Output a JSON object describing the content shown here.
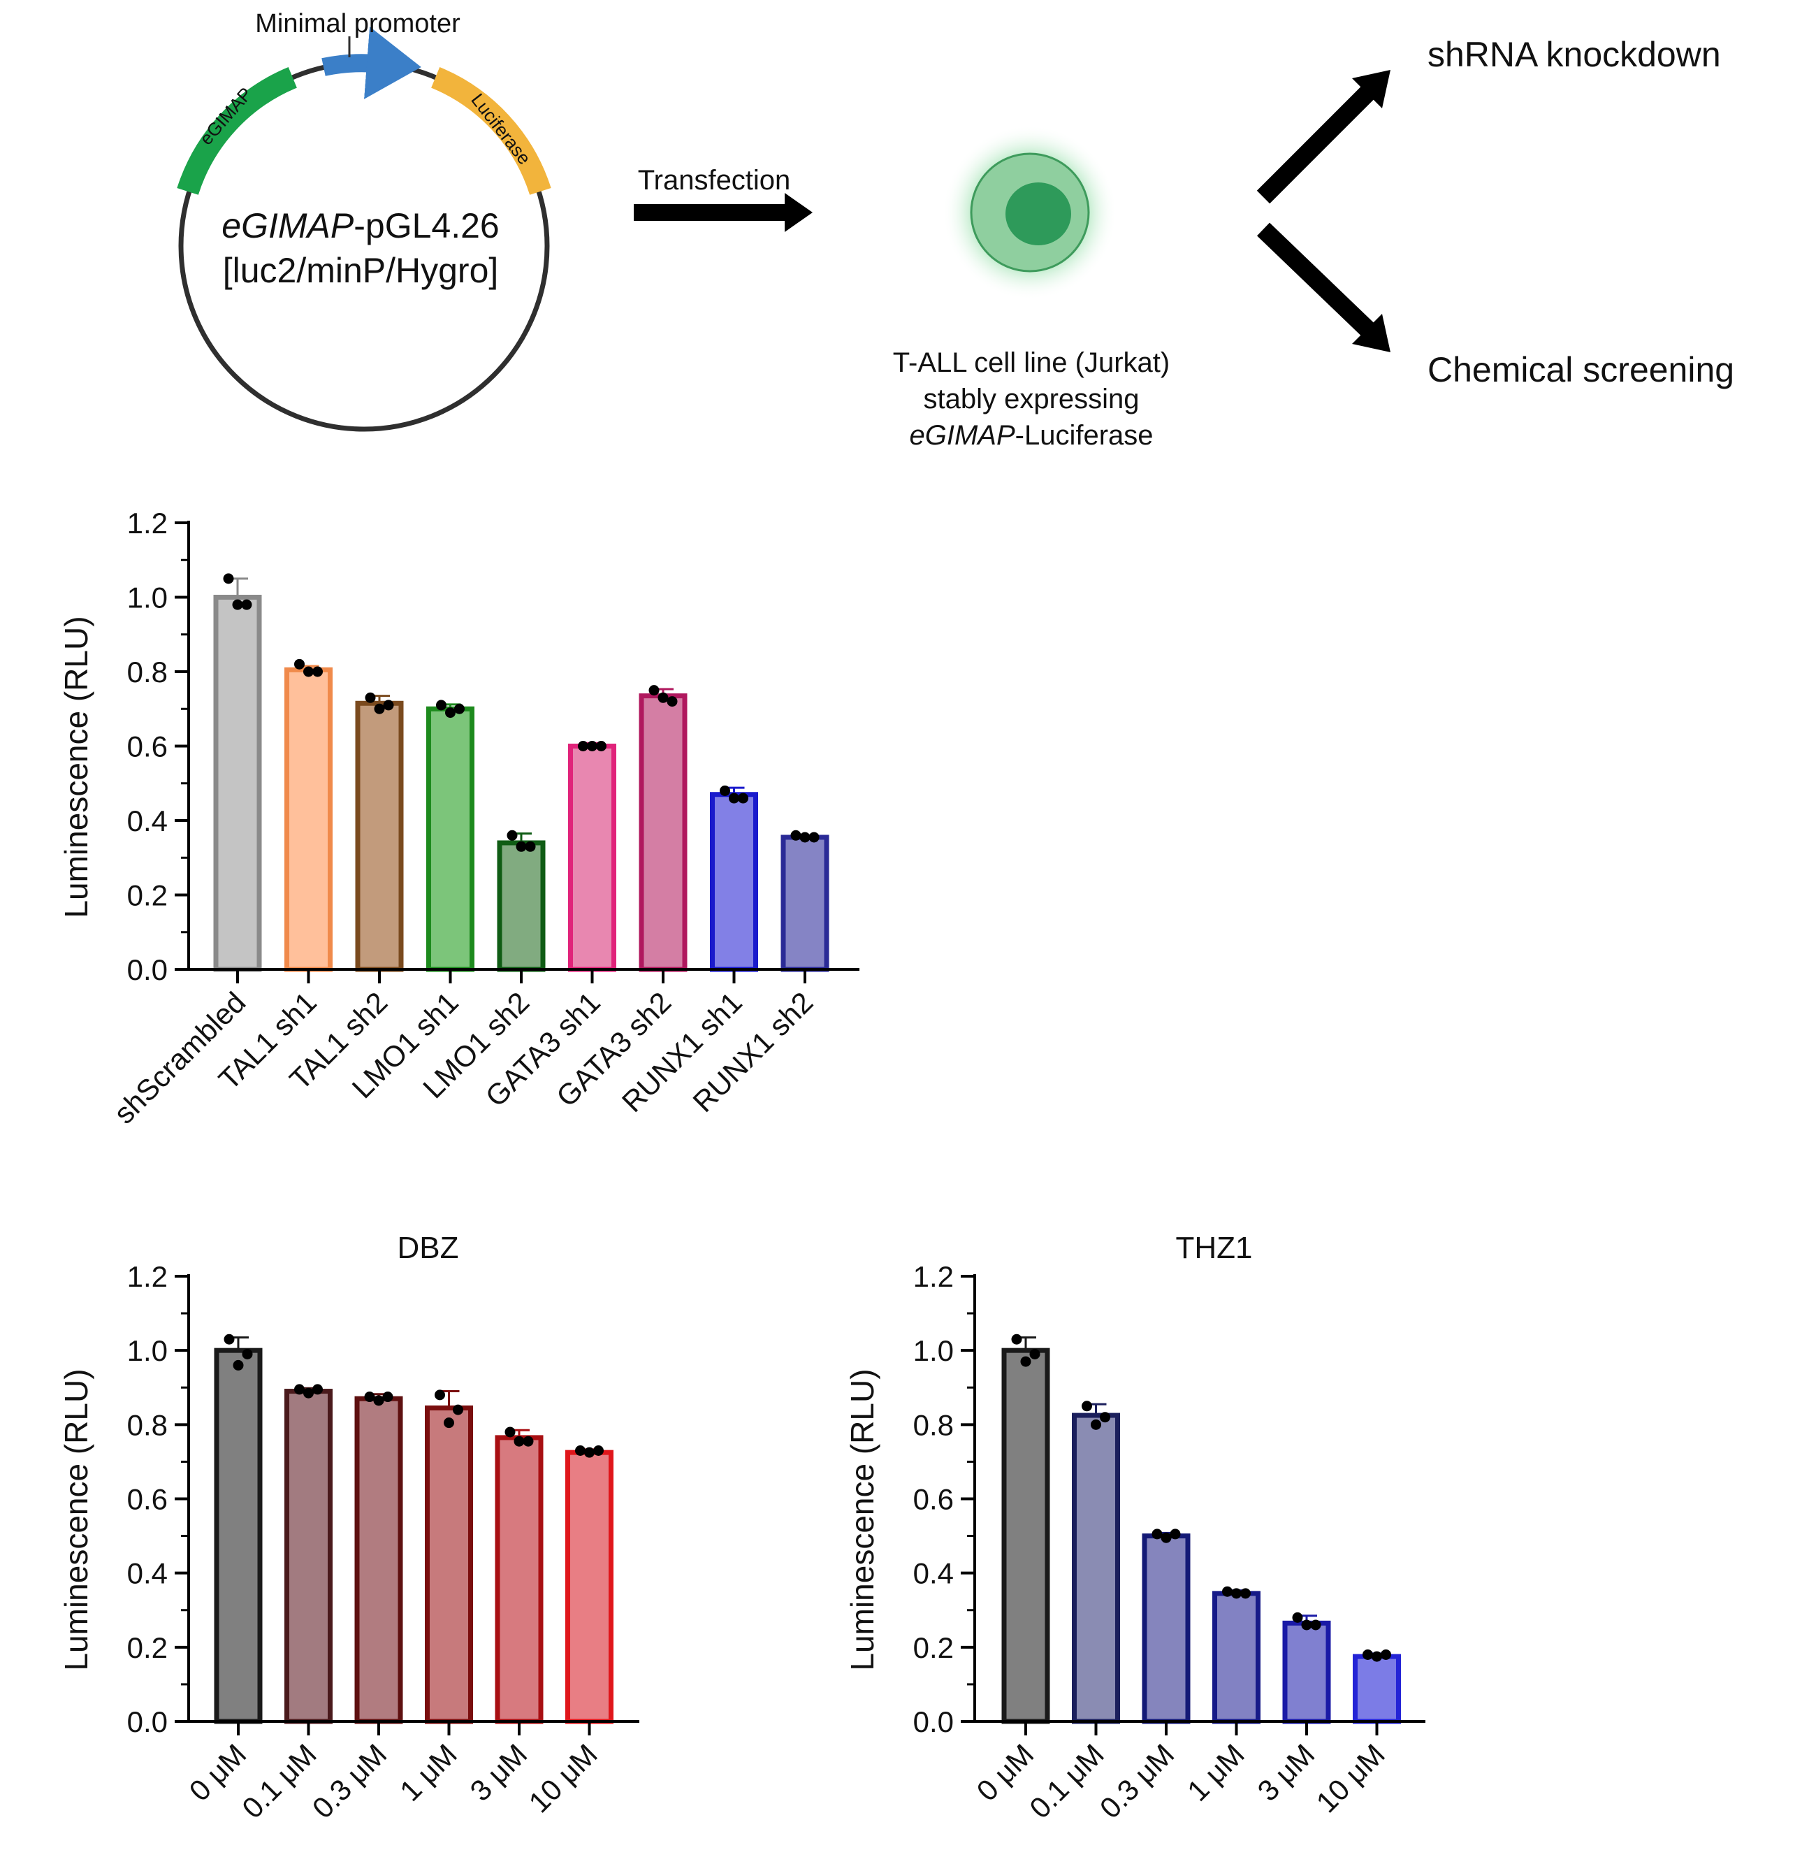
{
  "schematic": {
    "plasmid_name_italic": "eGIMAP",
    "plasmid_name_rest": "-pGL4.26",
    "plasmid_backbone": "[luc2/minP/Hygro]",
    "promoter_label": "Minimal promoter",
    "egimap_segment_label": "eGIMAP",
    "luciferase_segment_label": "Luciferase",
    "transfection_label": "Transfection",
    "cell_caption_line1": "T-ALL cell line (Jurkat)",
    "cell_caption_line2": "stably expressing",
    "cell_caption_line3_italic": "eGIMAP",
    "cell_caption_line3_rest": "-Luciferase",
    "branch_top_label": "shRNA knockdown",
    "branch_bottom_label": "Chemical screening",
    "colors": {
      "egimap": "#1aa34a",
      "promoter": "#3b7fc8",
      "luciferase": "#f2b43c",
      "cell_outer": "#8fcf9f",
      "cell_nucleus": "#2e9a5a"
    }
  },
  "chart_data": [
    {
      "type": "bar",
      "title": "",
      "xlabel": "",
      "ylabel": "Luminescence (RLU)",
      "ylim": [
        0,
        1.2
      ],
      "yticks": [
        "0.0",
        "0.2",
        "0.4",
        "0.6",
        "0.8",
        "1.0",
        "1.2"
      ],
      "grid": false,
      "categories": [
        "shScrambled",
        "TAL1 sh1",
        "TAL1 sh2",
        "LMO1 sh1",
        "LMO1 sh2",
        "GATA3 sh1",
        "GATA3 sh2",
        "RUNX1 sh1",
        "RUNX1 sh2"
      ],
      "values": [
        1.0,
        0.805,
        0.715,
        0.7,
        0.34,
        0.6,
        0.735,
        0.47,
        0.355
      ],
      "errors": [
        0.05,
        0.01,
        0.02,
        0.012,
        0.025,
        0.008,
        0.018,
        0.018,
        0.005
      ],
      "points": [
        [
          1.05,
          0.98,
          0.98
        ],
        [
          0.82,
          0.8,
          0.8
        ],
        [
          0.73,
          0.71,
          0.7
        ],
        [
          0.71,
          0.7,
          0.69
        ],
        [
          0.36,
          0.33,
          0.33
        ],
        [
          0.6,
          0.6,
          0.6
        ],
        [
          0.75,
          0.72,
          0.73
        ],
        [
          0.48,
          0.46,
          0.46
        ],
        [
          0.36,
          0.355,
          0.355
        ]
      ],
      "fill_colors": [
        "#c4c4c4",
        "#ffc09b",
        "#c29b7c",
        "#7cc57a",
        "#81ab80",
        "#e887b0",
        "#d47ea4",
        "#8280e6",
        "#8584c5"
      ],
      "edge_colors": [
        "#8a8a8a",
        "#f08a4b",
        "#7a4a1e",
        "#1d8a1d",
        "#0f5c14",
        "#e0237a",
        "#b0185e",
        "#1a1acc",
        "#2a2a96"
      ]
    },
    {
      "type": "bar",
      "title": "DBZ",
      "xlabel": "",
      "ylabel": "Luminescence (RLU)",
      "ylim": [
        0,
        1.2
      ],
      "yticks": [
        "0.0",
        "0.2",
        "0.4",
        "0.6",
        "0.8",
        "1.0",
        "1.2"
      ],
      "grid": false,
      "categories": [
        "0 μM",
        "0.1 μM",
        "0.3 μM",
        "1 μM",
        "3 μM",
        "10 μM"
      ],
      "values": [
        1.0,
        0.89,
        0.87,
        0.845,
        0.765,
        0.725
      ],
      "errors": [
        0.035,
        0.008,
        0.012,
        0.045,
        0.02,
        0.008
      ],
      "points": [
        [
          1.03,
          0.99,
          0.96
        ],
        [
          0.895,
          0.895,
          0.885
        ],
        [
          0.875,
          0.875,
          0.865
        ],
        [
          0.88,
          0.84,
          0.805
        ],
        [
          0.78,
          0.755,
          0.755
        ],
        [
          0.73,
          0.73,
          0.725
        ]
      ],
      "fill_colors": [
        "#808080",
        "#a27b80",
        "#b17c80",
        "#c77a7c",
        "#d77a7f",
        "#e87e84"
      ],
      "edge_colors": [
        "#1a1a1a",
        "#4a1a1c",
        "#5e1010",
        "#7a0e0e",
        "#a80f12",
        "#e0161b"
      ]
    },
    {
      "type": "bar",
      "title": "THZ1",
      "xlabel": "",
      "ylabel": "Luminescence (RLU)",
      "ylim": [
        0,
        1.2
      ],
      "yticks": [
        "0.0",
        "0.2",
        "0.4",
        "0.6",
        "0.8",
        "1.0",
        "1.2"
      ],
      "grid": false,
      "categories": [
        "0 μM",
        "0.1 μM",
        "0.3 μM",
        "1 μM",
        "3 μM",
        "10 μM"
      ],
      "values": [
        1.0,
        0.825,
        0.5,
        0.345,
        0.265,
        0.175
      ],
      "errors": [
        0.035,
        0.03,
        0.008,
        0.008,
        0.02,
        0.008
      ],
      "points": [
        [
          1.03,
          0.99,
          0.97
        ],
        [
          0.85,
          0.82,
          0.8
        ],
        [
          0.505,
          0.505,
          0.495
        ],
        [
          0.35,
          0.345,
          0.345
        ],
        [
          0.28,
          0.26,
          0.26
        ],
        [
          0.18,
          0.18,
          0.175
        ]
      ],
      "fill_colors": [
        "#808080",
        "#8a8cb3",
        "#8585bd",
        "#8282c3",
        "#8080d0",
        "#7c7ce6"
      ],
      "edge_colors": [
        "#1a1a1a",
        "#1b1f5c",
        "#141a76",
        "#161a88",
        "#1a1aa6",
        "#2424d6"
      ]
    }
  ]
}
